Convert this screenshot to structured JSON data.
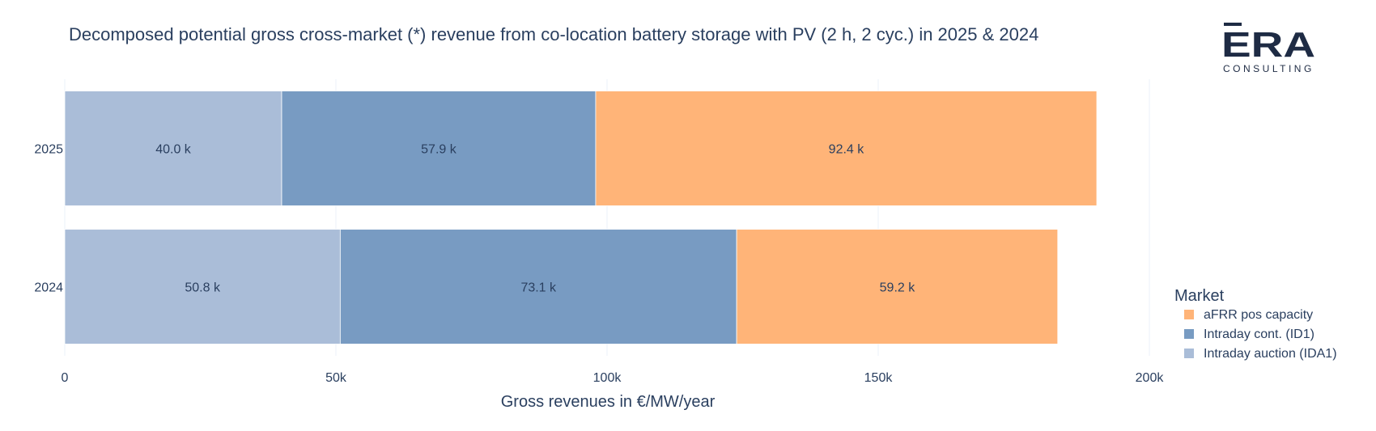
{
  "chart_data": {
    "type": "bar",
    "orientation": "horizontal",
    "stacked": true,
    "title": "Decomposed potential gross cross-market (*) revenue from co-location battery storage with PV (2 h, 2 cyc.) in 2025 & 2024",
    "xlabel": "Gross revenues in €/MW/year",
    "ylabel": "",
    "categories": [
      "2025",
      "2024"
    ],
    "xlim": [
      0,
      200000
    ],
    "x_ticks": [
      {
        "value": 0,
        "label": "0"
      },
      {
        "value": 50000,
        "label": "50k"
      },
      {
        "value": 100000,
        "label": "100k"
      },
      {
        "value": 150000,
        "label": "150k"
      },
      {
        "value": 200000,
        "label": "200k"
      }
    ],
    "grid": true,
    "series": [
      {
        "name": "Intraday auction (IDA1)",
        "color": "#aabdd8",
        "values": [
          40000,
          50800
        ],
        "labels": [
          "40.0 k",
          "50.8 k"
        ]
      },
      {
        "name": "Intraday cont. (ID1)",
        "color": "#789bc2",
        "values": [
          57900,
          73100
        ],
        "labels": [
          "57.9 k",
          "73.1 k"
        ]
      },
      {
        "name": "aFRR pos capacity",
        "color": "#ffb478",
        "values": [
          92400,
          59200
        ],
        "labels": [
          "92.4 k",
          "59.2 k"
        ]
      }
    ],
    "legend": {
      "title": "Market",
      "placement": "right-bottom",
      "order": [
        "aFRR pos capacity",
        "Intraday cont. (ID1)",
        "Intraday auction (IDA1)"
      ]
    }
  },
  "logo": {
    "letters": "ERA",
    "subtitle": "CONSULTING"
  }
}
